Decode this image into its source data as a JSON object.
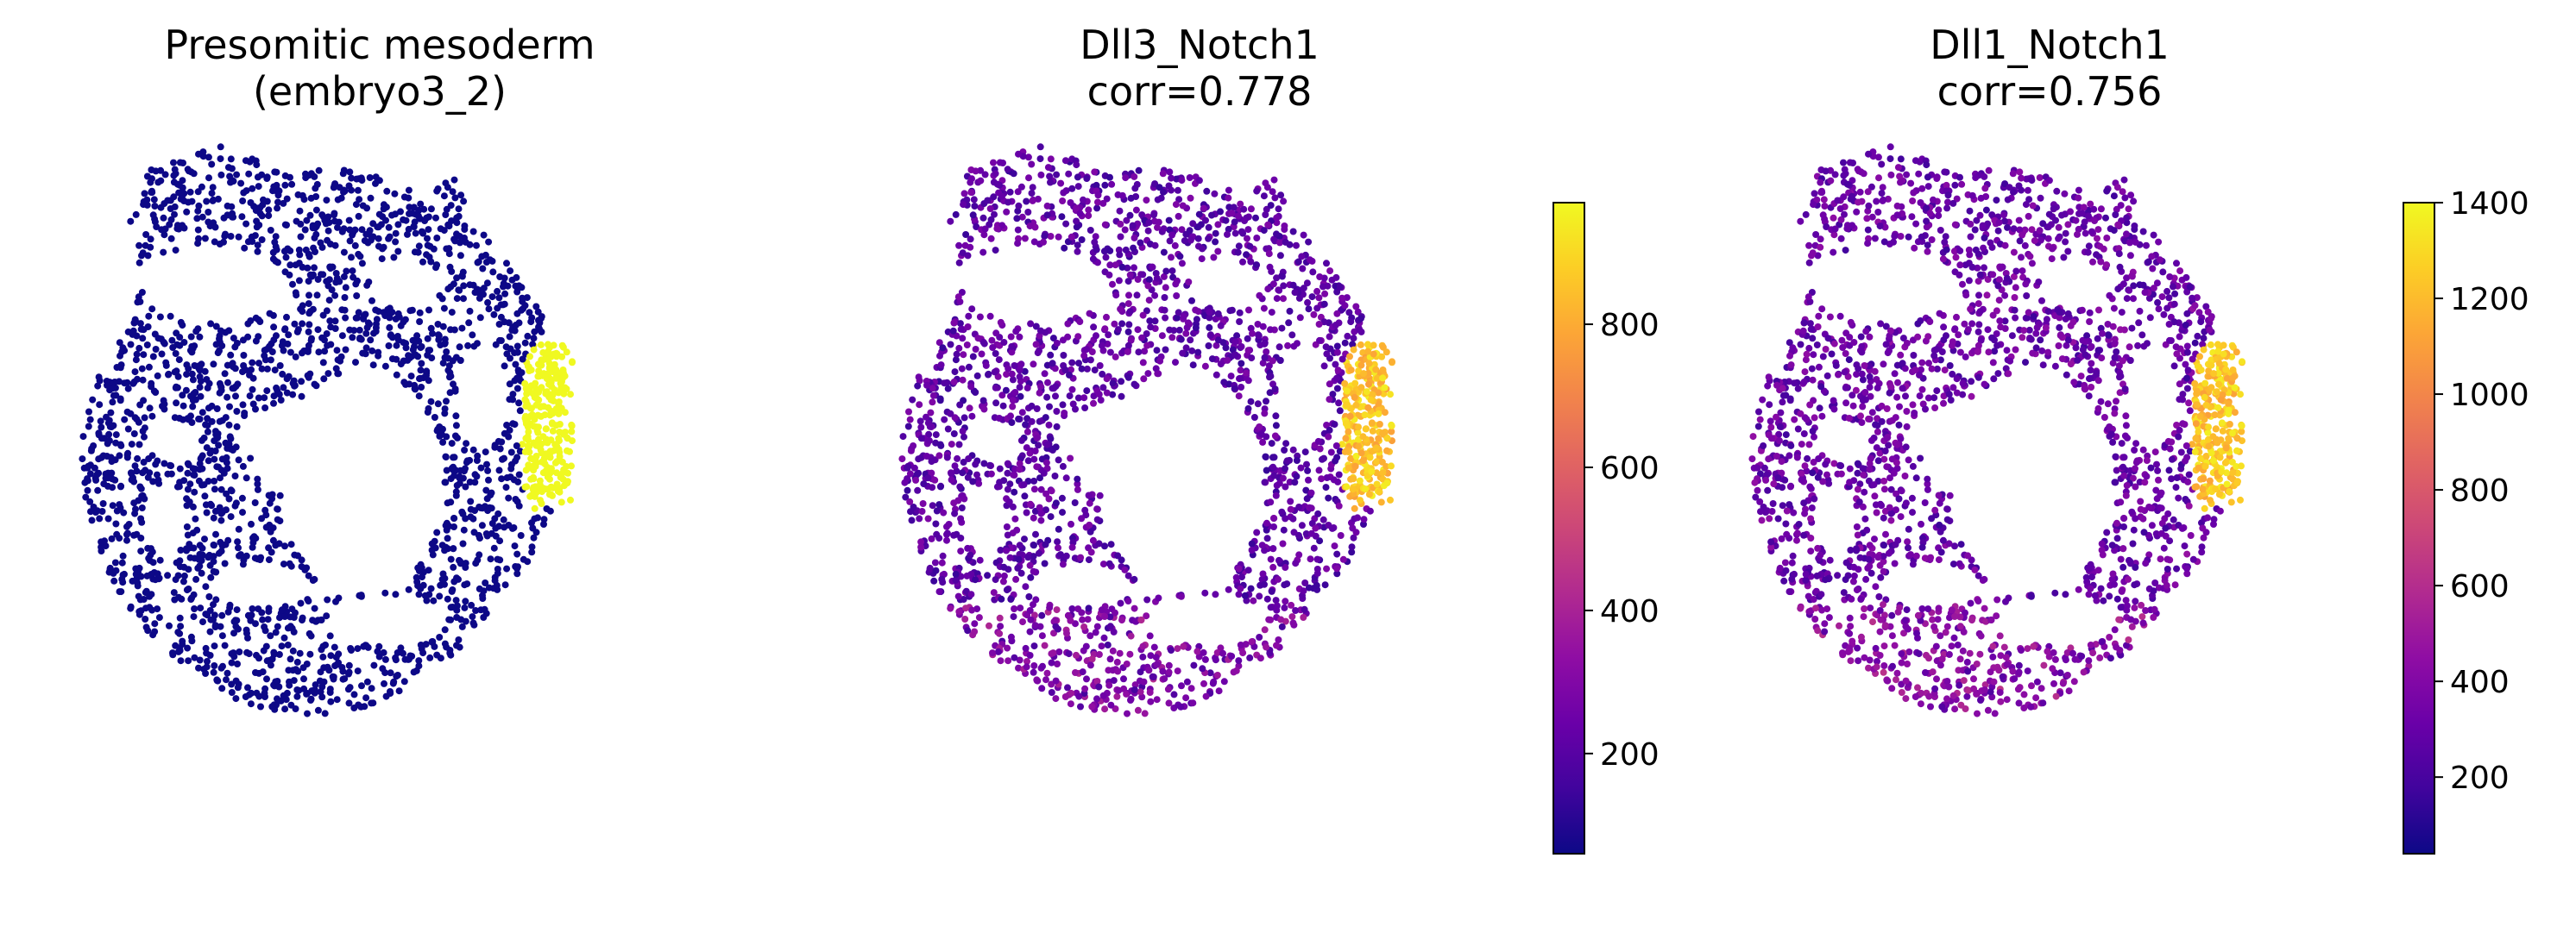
{
  "chart_data": [
    {
      "type": "scatter",
      "title": [
        "Presomitic mesoderm",
        "(embryo3_2)"
      ],
      "subtitle": "",
      "xlabel": "",
      "ylabel": "",
      "grid": false,
      "axes_visible": false,
      "colormap": "plasma",
      "value_range": [
        0,
        1
      ],
      "colorbar": null,
      "points": "spatial cell coordinates of embryo3_2; Presomitic mesoderm cells colored bright yellow, all others dark blue",
      "highlight_color": "#f0f921",
      "background_color": "#0d0887"
    },
    {
      "type": "scatter",
      "title": [
        "Dll3_Notch1",
        "corr=0.778"
      ],
      "xlabel": "",
      "ylabel": "",
      "grid": false,
      "axes_visible": false,
      "colormap": "plasma",
      "colorbar": {
        "range": [
          60,
          970
        ],
        "ticks": [
          200,
          400,
          600,
          800
        ],
        "tick_labels": [
          "200",
          "400",
          "600",
          "800"
        ],
        "placement": "right"
      }
    },
    {
      "type": "scatter",
      "title": [
        "Dll1_Notch1",
        "corr=0.756"
      ],
      "xlabel": "",
      "ylabel": "",
      "grid": false,
      "axes_visible": false,
      "colormap": "plasma",
      "colorbar": {
        "range": [
          40,
          1400
        ],
        "ticks": [
          200,
          400,
          600,
          800,
          1000,
          1200,
          1400
        ],
        "tick_labels": [
          "200",
          "400",
          "600",
          "800",
          "1000",
          "1200",
          "1400"
        ],
        "placement": "right"
      }
    }
  ]
}
